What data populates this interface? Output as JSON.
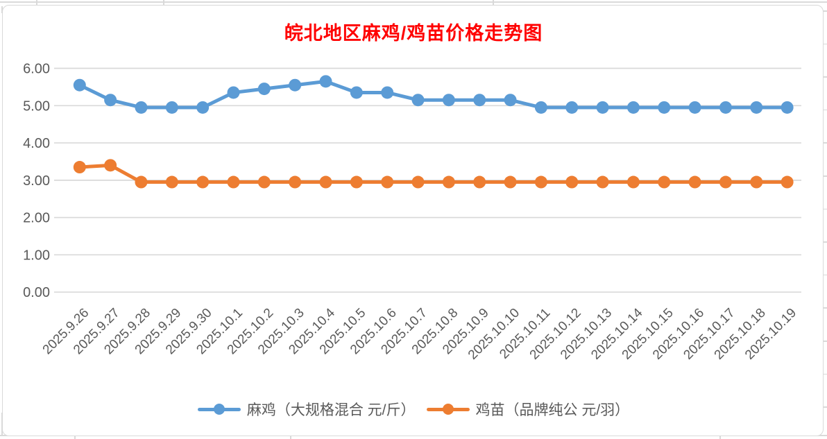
{
  "title": {
    "text": "皖北地区麻鸡/鸡苗价格走势图",
    "color": "#FF0000"
  },
  "chart_data": {
    "type": "line",
    "categories": [
      "2025.9.26",
      "2025.9.27",
      "2025.9.28",
      "2025.9.29",
      "2025.9.30",
      "2025.10.1",
      "2025.10.2",
      "2025.10.3",
      "2025.10.4",
      "2025.10.5",
      "2025.10.6",
      "2025.10.7",
      "2025.10.8",
      "2025.10.9",
      "2025.10.10",
      "2025.10.11",
      "2025.10.12",
      "2025.10.13",
      "2025.10.14",
      "2025.10.15",
      "2025.10.16",
      "2025.10.17",
      "2025.10.18",
      "2025.10.19"
    ],
    "series": [
      {
        "name": "麻鸡（大规格混合 元/斤）",
        "color": "#5B9BD5",
        "values": [
          5.55,
          5.15,
          4.95,
          4.95,
          4.95,
          5.35,
          5.45,
          5.55,
          5.65,
          5.35,
          5.35,
          5.15,
          5.15,
          5.15,
          5.15,
          4.95,
          4.95,
          4.95,
          4.95,
          4.95,
          4.95,
          4.95,
          4.95,
          4.95
        ]
      },
      {
        "name": "鸡苗（品牌纯公 元/羽）",
        "color": "#ED7D31",
        "values": [
          3.35,
          3.4,
          2.95,
          2.95,
          2.95,
          2.95,
          2.95,
          2.95,
          2.95,
          2.95,
          2.95,
          2.95,
          2.95,
          2.95,
          2.95,
          2.95,
          2.95,
          2.95,
          2.95,
          2.95,
          2.95,
          2.95,
          2.95,
          2.95
        ]
      }
    ],
    "title": "皖北地区麻鸡/鸡苗价格走势图",
    "xlabel": "",
    "ylabel": "",
    "ylim": [
      0,
      6
    ],
    "ytick_step": 1,
    "ytick_labels": [
      "0.00",
      "1.00",
      "2.00",
      "3.00",
      "4.00",
      "5.00",
      "6.00"
    ],
    "grid": "horizontal-only",
    "legend_position": "bottom",
    "axis_text_color": "#595959",
    "gridline_color": "#D9D9D9"
  }
}
